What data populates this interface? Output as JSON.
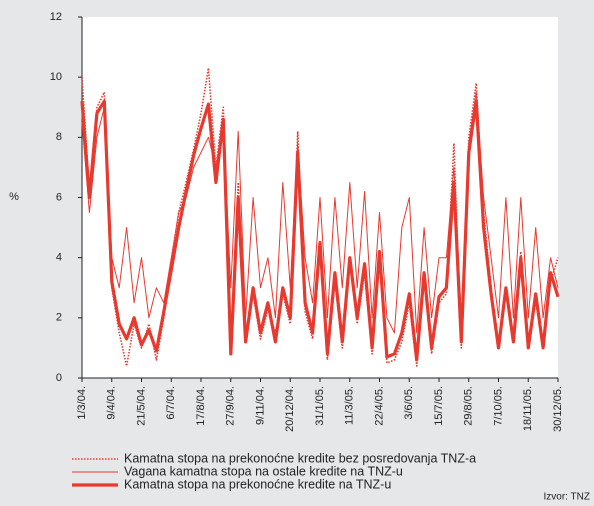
{
  "chart_data": {
    "type": "line",
    "y_label": "%",
    "source": "Izvor: TNZ",
    "categories": [
      "1/3/04.",
      null,
      null,
      null,
      "9/4/04.",
      null,
      null,
      null,
      "21/5/04.",
      null,
      null,
      null,
      "6/7/04.",
      null,
      null,
      null,
      "17/8/04.",
      null,
      null,
      null,
      "27/9/04.",
      null,
      null,
      null,
      "9/11/04.",
      null,
      null,
      null,
      "20/12/04.",
      null,
      null,
      null,
      "31/1/05.",
      null,
      null,
      null,
      "11/3/05.",
      null,
      null,
      null,
      "22/4/05.",
      null,
      null,
      null,
      "3/6/05.",
      null,
      null,
      null,
      "15/7/05.",
      null,
      null,
      null,
      "29/8/05.",
      null,
      null,
      null,
      "7/10/05.",
      null,
      null,
      null,
      "18/11/05.",
      null,
      null,
      null,
      "30/12/05."
    ],
    "series": [
      {
        "name": "Kamatna stopa na prekonoćne kredite bez posredovanja TNZ-a",
        "color": "#e8392f",
        "style": "dotted",
        "values": [
          10,
          6.2,
          9,
          9.5,
          3,
          1.5,
          0.4,
          1.8,
          1,
          1.8,
          0.6,
          2,
          3.8,
          5.5,
          6.5,
          7.6,
          8.8,
          10.3,
          7,
          9,
          1,
          6.5,
          1.5,
          2.8,
          1.3,
          2.3,
          1.5,
          2.8,
          1.8,
          8.2,
          2.2,
          1.3,
          4.2,
          0.6,
          3.2,
          1,
          3.8,
          1.8,
          3.5,
          0.8,
          4,
          0.5,
          0.6,
          1.2,
          2.5,
          0.4,
          3.2,
          0.8,
          2.5,
          2.8,
          7.8,
          1,
          8,
          9.8,
          5.5,
          3,
          1.2,
          2.8,
          1.4,
          4.2,
          1.2,
          2.5,
          1.2,
          3.2,
          4
        ]
      },
      {
        "name": "Vagana kamatna stopa na ostale kredite na TNZ-u",
        "color": "#e8392f",
        "style": "thin",
        "values": [
          8.5,
          5.5,
          8,
          9,
          4,
          3,
          5,
          2.5,
          4,
          2,
          3,
          2.5,
          4,
          5.5,
          6,
          7,
          7.5,
          8,
          7,
          8.5,
          3,
          8.2,
          2,
          6,
          3,
          4,
          2,
          6.5,
          3,
          7.8,
          4,
          2.5,
          6,
          2,
          6,
          3,
          6.5,
          3,
          6.2,
          2,
          5.5,
          2,
          1.5,
          5,
          6,
          1.5,
          5,
          2,
          4,
          4,
          7,
          2,
          7.8,
          9.5,
          6,
          4,
          2,
          6,
          2,
          6,
          2,
          5,
          2,
          4,
          3
        ]
      },
      {
        "name": "Kamatna stopa na prekonoćne kredite na TNZ-u",
        "color": "#e8392f",
        "style": "thick",
        "values": [
          9.2,
          6,
          8.8,
          9.2,
          3.2,
          1.8,
          1.3,
          2,
          1.1,
          1.6,
          0.9,
          2.2,
          3.6,
          5,
          6.2,
          7.4,
          8.3,
          9.1,
          6.5,
          8.6,
          0.8,
          6,
          1.2,
          3,
          1.5,
          2.5,
          1.2,
          3,
          2,
          7.5,
          2.5,
          1.5,
          4.5,
          0.8,
          3.5,
          1.2,
          4,
          2,
          3.8,
          1,
          4.2,
          0.7,
          0.8,
          1.5,
          2.8,
          0.6,
          3.5,
          1,
          2.7,
          3,
          6.5,
          1.2,
          7.5,
          9.2,
          5,
          2.8,
          1,
          3,
          1.2,
          4,
          1,
          2.8,
          1,
          3.5,
          2.7
        ]
      }
    ],
    "ylim": [
      0,
      12
    ],
    "yticks": [
      0,
      2,
      4,
      6,
      8,
      10,
      12
    ]
  }
}
